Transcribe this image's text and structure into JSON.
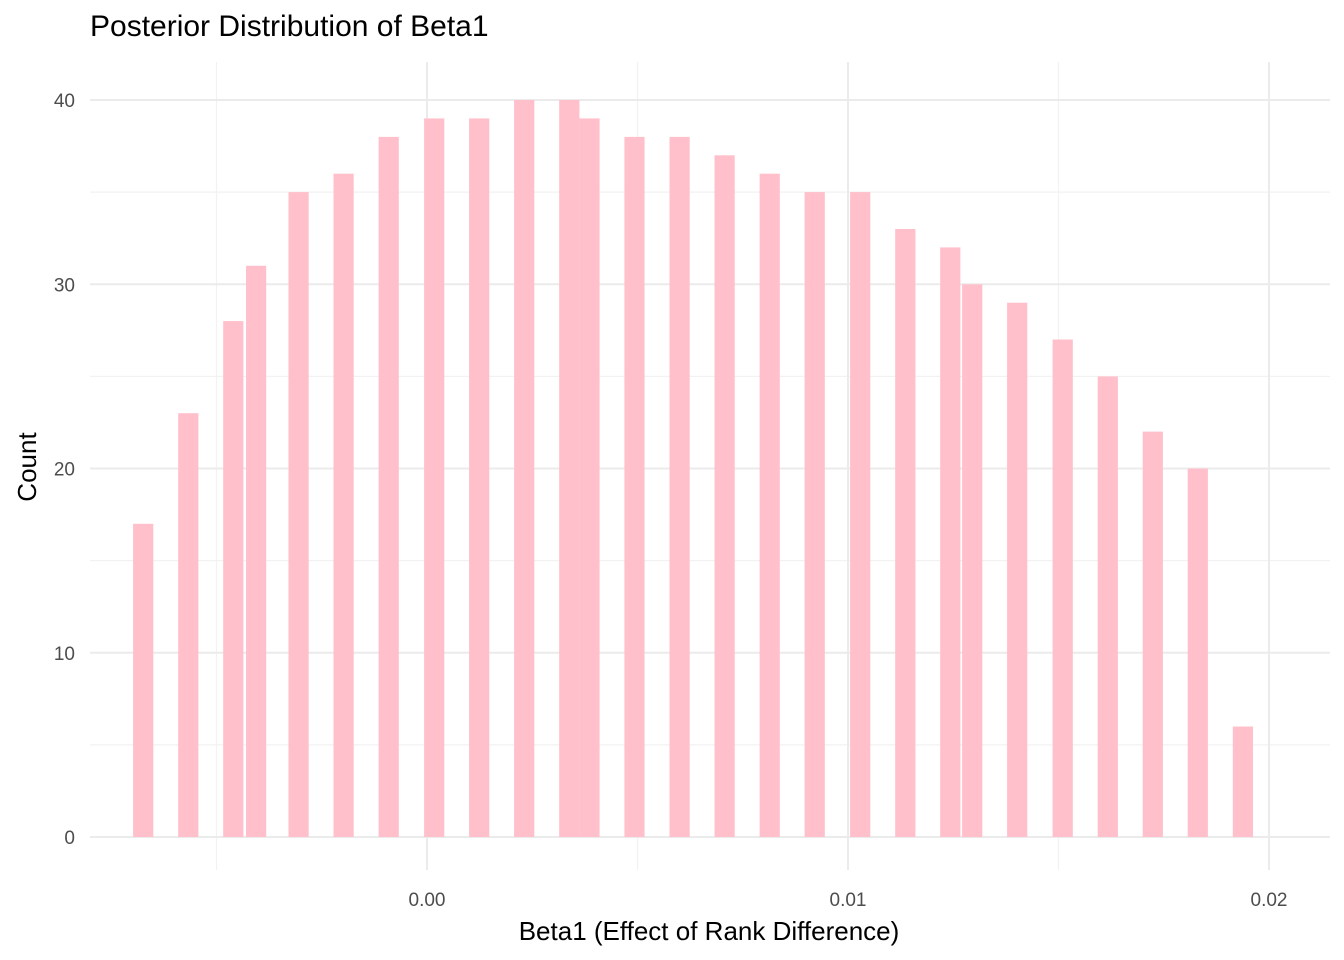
{
  "chart_data": {
    "type": "bar",
    "title": "Posterior Distribution of Beta1",
    "xlabel": "Beta1 (Effect of Rank Difference)",
    "ylabel": "Count",
    "xlim": [
      -0.008,
      0.0215
    ],
    "ylim": [
      -1.5,
      42
    ],
    "x_ticks": [
      0.0,
      0.01,
      0.02
    ],
    "x_tick_labels": [
      "0.00",
      "0.01",
      "0.02"
    ],
    "y_ticks": [
      0,
      10,
      20,
      30,
      40
    ],
    "y_tick_labels": [
      "0",
      "10",
      "20",
      "30",
      "40"
    ],
    "grid": true,
    "bar_color": "#FFC0CB",
    "bars": [
      {
        "x": -0.00674,
        "count": 17
      },
      {
        "x": -0.00567,
        "count": 23
      },
      {
        "x": -0.0046,
        "count": 28
      },
      {
        "x": -0.00406,
        "count": 31
      },
      {
        "x": -0.00305,
        "count": 35
      },
      {
        "x": -0.00198,
        "count": 36
      },
      {
        "x": -0.00091,
        "count": 38
      },
      {
        "x": 0.00017,
        "count": 39
      },
      {
        "x": 0.00124,
        "count": 39
      },
      {
        "x": 0.00231,
        "count": 40
      },
      {
        "x": 0.00338,
        "count": 40
      },
      {
        "x": 0.00386,
        "count": 39
      },
      {
        "x": 0.00493,
        "count": 38
      },
      {
        "x": 0.006,
        "count": 38
      },
      {
        "x": 0.00707,
        "count": 37
      },
      {
        "x": 0.00814,
        "count": 36
      },
      {
        "x": 0.00921,
        "count": 35
      },
      {
        "x": 0.01029,
        "count": 35
      },
      {
        "x": 0.01136,
        "count": 33
      },
      {
        "x": 0.01243,
        "count": 32
      },
      {
        "x": 0.01295,
        "count": 30
      },
      {
        "x": 0.01402,
        "count": 29
      },
      {
        "x": 0.0151,
        "count": 27
      },
      {
        "x": 0.01617,
        "count": 25
      },
      {
        "x": 0.01724,
        "count": 22
      },
      {
        "x": 0.01831,
        "count": 20
      },
      {
        "x": 0.01938,
        "count": 6
      }
    ]
  }
}
